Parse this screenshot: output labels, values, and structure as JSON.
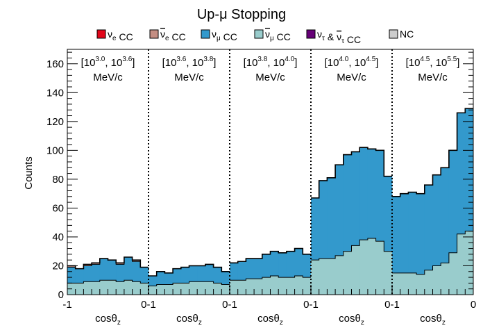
{
  "chart_data": {
    "type": "stacked-step-histogram",
    "title": "Up-μ Stopping",
    "ylabel": "Counts",
    "ylim": [
      0,
      170
    ],
    "yticks": [
      0,
      20,
      40,
      60,
      80,
      100,
      120,
      140,
      160
    ],
    "xlabel": "cosθ_z",
    "x_tick_labels": [
      "-1",
      "0-1",
      "0-1",
      "0-1",
      "0-1",
      "0"
    ],
    "bins_per_panel": 10,
    "colors": {
      "nu_e_cc": "#e2061a",
      "nubar_e_cc": "#c48e83",
      "nu_mu_cc": "#3399cc",
      "nubar_mu_cc": "#99cccc",
      "nu_tau_cc": "#660077",
      "nc": "#cccccc",
      "outline": "#000000"
    },
    "legend": [
      {
        "sym": "ν",
        "sub": "e",
        "bar": false,
        "text": "CC",
        "color_key": "nu_e_cc"
      },
      {
        "sym": "ν",
        "sub": "e",
        "bar": true,
        "text": "CC",
        "color_key": "nubar_e_cc"
      },
      {
        "sym": "ν",
        "sub": "μ",
        "bar": false,
        "text": "CC",
        "color_key": "nu_mu_cc"
      },
      {
        "sym": "ν",
        "sub": "μ",
        "bar": true,
        "text": "CC",
        "color_key": "nubar_mu_cc"
      },
      {
        "sym": "ν",
        "sub": "τ",
        "bar": false,
        "text": " & ",
        "sym2": "ν",
        "sub2": "τ",
        "bar2": true,
        "text2": "CC",
        "color_key": "nu_tau_cc"
      },
      {
        "sym": "",
        "sub": "",
        "bar": false,
        "text": "NC",
        "color_key": "nc"
      }
    ],
    "panels": [
      {
        "label_lo_exp": "3.0",
        "label_hi_exp": "3.6",
        "unit": "MeV/c",
        "total": [
          20,
          18,
          21,
          22,
          25,
          24,
          22,
          26,
          24,
          19
        ],
        "nu_mu_cc": [
          11,
          10,
          11,
          12,
          15,
          14,
          12,
          16,
          14,
          11
        ],
        "nubar_mu_cc": [
          8,
          8,
          9,
          9,
          10,
          10,
          9,
          10,
          9,
          8
        ]
      },
      {
        "label_lo_exp": "3.6",
        "label_hi_exp": "3.8",
        "unit": "MeV/c",
        "total": [
          13,
          16,
          15,
          18,
          19,
          20,
          20,
          21,
          19,
          16
        ],
        "nu_mu_cc": [
          7,
          9,
          8,
          10,
          11,
          11,
          11,
          12,
          11,
          9
        ],
        "nubar_mu_cc": [
          6,
          7,
          7,
          8,
          8,
          9,
          9,
          9,
          8,
          7
        ]
      },
      {
        "label_lo_exp": "3.8",
        "label_hi_exp": "4.0",
        "unit": "MeV/c",
        "total": [
          22,
          23,
          25,
          25,
          28,
          30,
          29,
          30,
          32,
          28
        ],
        "nu_mu_cc": [
          12,
          13,
          14,
          14,
          16,
          17,
          17,
          18,
          19,
          16
        ],
        "nubar_mu_cc": [
          10,
          10,
          11,
          11,
          12,
          13,
          12,
          12,
          13,
          12
        ]
      },
      {
        "label_lo_exp": "4.0",
        "label_hi_exp": "4.5",
        "unit": "MeV/c",
        "total": [
          67,
          79,
          81,
          90,
          97,
          99,
          102,
          101,
          100,
          82
        ],
        "nu_mu_cc": [
          43,
          54,
          56,
          63,
          67,
          65,
          64,
          62,
          63,
          52
        ],
        "nubar_mu_cc": [
          24,
          25,
          25,
          27,
          30,
          34,
          38,
          39,
          37,
          30
        ]
      },
      {
        "label_lo_exp": "4.5",
        "label_hi_exp": "5.5",
        "unit": "MeV/c",
        "total": [
          68,
          70,
          71,
          70,
          76,
          83,
          88,
          100,
          126,
          129
        ],
        "nu_mu_cc": [
          53,
          55,
          56,
          56,
          59,
          63,
          66,
          71,
          84,
          85
        ],
        "nubar_mu_cc": [
          15,
          15,
          15,
          14,
          17,
          20,
          22,
          29,
          42,
          44
        ]
      }
    ]
  }
}
